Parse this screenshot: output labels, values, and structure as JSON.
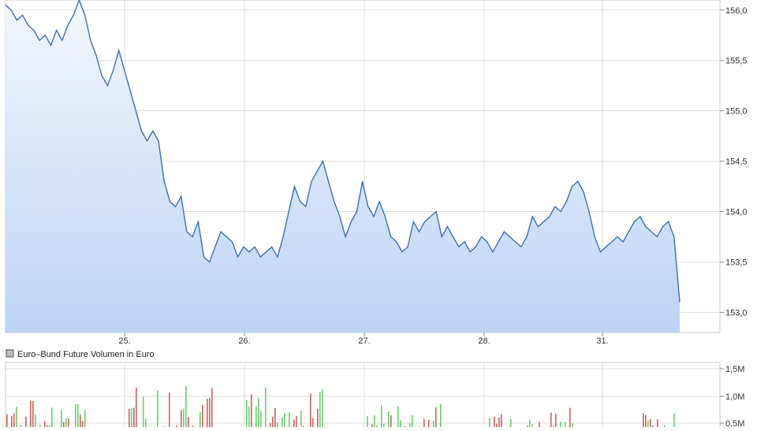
{
  "chart_data": [
    {
      "type": "area",
      "x_ticks": [
        "25.",
        "26.",
        "27.",
        "28.",
        "31."
      ],
      "y_ticks": [
        "156,0",
        "155,5",
        "155,0",
        "154,5",
        "154,0",
        "153,5",
        "153,0"
      ],
      "ylim": [
        152.8,
        156.1
      ],
      "grid": true,
      "series": [
        {
          "values": [
            156.05,
            156.0,
            155.9,
            155.95,
            155.85,
            155.8,
            155.7,
            155.75,
            155.65,
            155.8,
            155.7,
            155.85,
            155.95,
            156.1,
            155.95,
            155.7,
            155.55,
            155.35,
            155.25,
            155.4,
            155.6,
            155.4,
            155.2,
            155.0,
            154.8,
            154.7,
            154.8,
            154.7,
            154.3,
            154.1,
            154.05,
            154.15,
            153.8,
            153.75,
            153.9,
            153.55,
            153.5,
            153.65,
            153.8,
            153.75,
            153.7,
            153.55,
            153.65,
            153.6,
            153.65,
            153.55,
            153.6,
            153.65,
            153.55,
            153.75,
            154.0,
            154.25,
            154.1,
            154.05,
            154.3,
            154.4,
            154.5,
            154.3,
            154.1,
            153.95,
            153.75,
            153.9,
            154.0,
            154.3,
            154.05,
            153.95,
            154.1,
            153.95,
            153.75,
            153.7,
            153.6,
            153.65,
            153.9,
            153.8,
            153.9,
            153.95,
            154.0,
            153.75,
            153.85,
            153.75,
            153.65,
            153.7,
            153.6,
            153.65,
            153.75,
            153.7,
            153.6,
            153.7,
            153.8,
            153.75,
            153.7,
            153.65,
            153.75,
            153.95,
            153.85,
            153.9,
            153.95,
            154.05,
            154.0,
            154.1,
            154.25,
            154.3,
            154.2,
            154.0,
            153.75,
            153.6,
            153.65,
            153.7,
            153.75,
            153.7,
            153.8,
            153.9,
            153.95,
            153.85,
            153.8,
            153.75,
            153.85,
            153.9,
            153.75,
            153.1
          ]
        }
      ]
    },
    {
      "type": "bar",
      "title": "Euro–Bund Future Volumen in Euro",
      "x_ticks": [
        "25.",
        "26.",
        "27.",
        "28.",
        "31."
      ],
      "y_ticks": [
        "1,5M",
        "1,0M",
        "0,5M"
      ],
      "ylim": [
        0,
        1.7
      ],
      "grid": true,
      "colors": {
        "up": "#6ad06a",
        "down": "#d06060"
      }
    }
  ]
}
